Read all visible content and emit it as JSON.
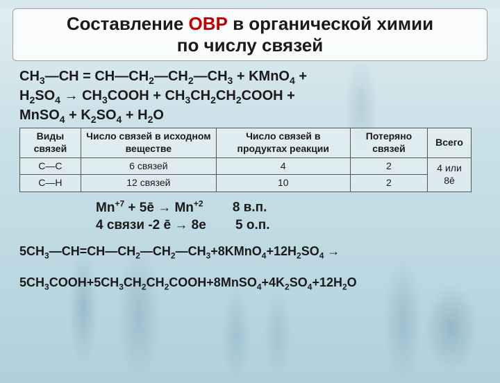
{
  "title": {
    "pre": "Составление ",
    "highlight": "ОВР",
    "post": " в органической химии",
    "line2": "по числу связей",
    "highlight_color": "#c00000",
    "text_color": "#1a1a1a",
    "fontsize": 26
  },
  "equation": {
    "l1": "CH₃—CH = CH—CH₂—CH₂—CH₃ + KMnO₄ +",
    "l2": "H₂SO₄ → CH₃COOH + CH₃CH₂CH₂COOH +",
    "l3": "MnSO₄ + K₂SO₄ + H₂O"
  },
  "table": {
    "headers": [
      "Виды связей",
      "Число связей в исходном веществе",
      "Число связей в продуктах реакции",
      "Потеряно связей",
      "Всего"
    ],
    "rows": [
      {
        "bond": "C—C",
        "initial": "6 связей",
        "products": "4",
        "lost": "2"
      },
      {
        "bond": "C—H",
        "initial": "12 связей",
        "products": "10",
        "lost": "2"
      }
    ],
    "total": "4 или 8ē",
    "fontsize": 14,
    "border_color": "#555555"
  },
  "half": {
    "l1_left": "Mn⁺⁷ + 5ē → Mn⁺²",
    "l1_right": "8  в.п.",
    "l2_left": "4 связи -2 ē → 8e",
    "l2_right": "5  о.п."
  },
  "balanced": {
    "r1": "5CH₃—CH=CH—CH₂—CH₂—CH₃+8KMnO₄+12H₂SO₄ →",
    "r2": "5CH₃COOH+5CH₃CH₂CH₂COOH+8MnSO₄+4K₂SO₄+12H₂O"
  },
  "colors": {
    "background_top": "#d8e8ed",
    "background_bottom": "#b0d0dc",
    "title_box_bg": "rgba(255,255,255,0.85)",
    "text": "#1a1a1a"
  }
}
